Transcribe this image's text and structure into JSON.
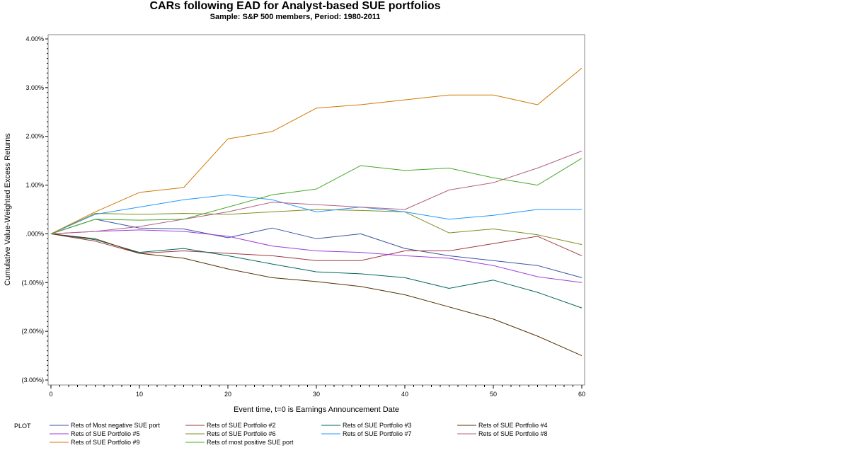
{
  "chart_data": {
    "type": "line",
    "title": "CARs following EAD for Analyst-based SUE portfolios",
    "subtitle": "Sample: S&P 500 members, Period: 1980-2011",
    "xlabel": "Event time, t=0 is Earnings Announcement Date",
    "ylabel": "Cumulative Value-Weighted Excess Returns",
    "xlim": [
      0,
      60
    ],
    "ylim": [
      -3.0,
      4.0
    ],
    "x_ticks": [
      0,
      10,
      20,
      30,
      40,
      50,
      60
    ],
    "x_tick_labels": [
      "0",
      "10",
      "20",
      "30",
      "40",
      "50",
      "60"
    ],
    "y_ticks": [
      4.0,
      3.0,
      2.0,
      1.0,
      0.0,
      -1.0,
      -2.0,
      -3.0
    ],
    "y_tick_labels": [
      "4.00%",
      "3.00%",
      "2.00%",
      "1.00%",
      ".000%",
      "(1.00%)",
      "(2.00%)",
      "(3.00%)"
    ],
    "grid": false,
    "legend_title": "PLOT",
    "legend_position": "bottom",
    "x": [
      0,
      5,
      10,
      15,
      20,
      25,
      30,
      35,
      40,
      45,
      50,
      55,
      60
    ],
    "series": [
      {
        "name": "Rets of Most negative SUE port",
        "color": "#3a53a4",
        "values": [
          0.0,
          0.3,
          0.12,
          0.1,
          -0.08,
          0.12,
          -0.1,
          0.0,
          -0.3,
          -0.45,
          -0.55,
          -0.65,
          -0.9
        ]
      },
      {
        "name": "Rets of SUE Portfolio #2",
        "color": "#a0373f",
        "values": [
          0.0,
          -0.15,
          -0.4,
          -0.35,
          -0.4,
          -0.45,
          -0.55,
          -0.55,
          -0.35,
          -0.35,
          -0.2,
          -0.05,
          -0.45
        ]
      },
      {
        "name": "Rets of SUE Portfolio #3",
        "color": "#01665e",
        "values": [
          0.0,
          -0.12,
          -0.38,
          -0.3,
          -0.45,
          -0.62,
          -0.78,
          -0.82,
          -0.9,
          -1.12,
          -0.95,
          -1.2,
          -1.52
        ]
      },
      {
        "name": "Rets of SUE Portfolio #4",
        "color": "#543005",
        "values": [
          0.0,
          -0.1,
          -0.4,
          -0.5,
          -0.72,
          -0.9,
          -0.98,
          -1.08,
          -1.25,
          -1.5,
          -1.75,
          -2.1,
          -2.5
        ]
      },
      {
        "name": "Rets of SUE Portfolio #5",
        "color": "#9d3cdb",
        "values": [
          0.0,
          0.05,
          0.08,
          0.05,
          -0.05,
          -0.25,
          -0.35,
          -0.38,
          -0.45,
          -0.5,
          -0.65,
          -0.88,
          -1.0
        ]
      },
      {
        "name": "Rets of SUE Portfolio #6",
        "color": "#7f8e1f",
        "values": [
          0.0,
          0.42,
          0.4,
          0.42,
          0.4,
          0.45,
          0.5,
          0.48,
          0.45,
          0.02,
          0.1,
          -0.02,
          -0.22
        ]
      },
      {
        "name": "Rets of SUE Portfolio #7",
        "color": "#2597fa",
        "values": [
          0.0,
          0.4,
          0.55,
          0.7,
          0.8,
          0.7,
          0.45,
          0.55,
          0.45,
          0.3,
          0.38,
          0.5,
          0.5
        ]
      },
      {
        "name": "Rets of SUE Portfolio #8",
        "color": "#b26084",
        "values": [
          0.0,
          0.05,
          0.15,
          0.3,
          0.45,
          0.65,
          0.6,
          0.55,
          0.5,
          0.9,
          1.05,
          1.35,
          1.7
        ]
      },
      {
        "name": "Rets of SUE Portfolio #9",
        "color": "#d17800",
        "values": [
          0.0,
          0.45,
          0.85,
          0.95,
          1.95,
          2.1,
          2.58,
          2.65,
          2.75,
          2.85,
          2.85,
          2.65,
          3.4
        ]
      },
      {
        "name": "Rets of most positive SUE port",
        "color": "#47a82a",
        "values": [
          0.0,
          0.3,
          0.28,
          0.3,
          0.55,
          0.8,
          0.92,
          1.4,
          1.3,
          1.35,
          1.15,
          1.0,
          1.55
        ]
      }
    ]
  }
}
